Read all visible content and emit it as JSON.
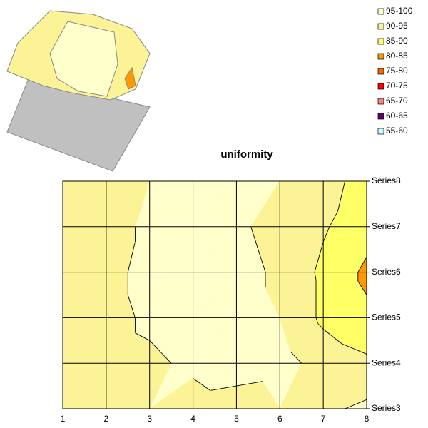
{
  "chart_data": {
    "type": "contour",
    "title": "uniformity",
    "categories": [
      "1",
      "2",
      "3",
      "4",
      "5",
      "6",
      "7",
      "8"
    ],
    "series": [
      {
        "name": "Series3",
        "values": [
          92,
          93,
          95,
          93,
          92,
          95,
          94,
          96
        ]
      },
      {
        "name": "Series4",
        "values": [
          92,
          93,
          94,
          96,
          98,
          97,
          93,
          91
        ]
      },
      {
        "name": "Series5",
        "values": [
          92,
          93,
          96,
          98,
          97,
          95,
          89,
          86
        ]
      },
      {
        "name": "Series6",
        "values": [
          92,
          93,
          97,
          98,
          97,
          94,
          89,
          84
        ]
      },
      {
        "name": "Series7",
        "values": [
          92,
          93,
          96,
          98,
          96,
          93,
          90.5,
          87
        ]
      },
      {
        "name": "Series8",
        "values": [
          92,
          92,
          95,
          98,
          98,
          95,
          91,
          89
        ]
      }
    ],
    "bands": [
      {
        "name": "95-100",
        "color": "#ffffcc"
      },
      {
        "name": "90-95",
        "color": "#fcf296"
      },
      {
        "name": "85-90",
        "color": "#ffff66"
      },
      {
        "name": "80-85",
        "color": "#ff9900"
      },
      {
        "name": "75-80",
        "color": "#ff6600"
      },
      {
        "name": "70-75",
        "color": "#ff0000"
      },
      {
        "name": "65-70",
        "color": "#ff8080"
      },
      {
        "name": "60-65",
        "color": "#660066"
      },
      {
        "name": "55-60",
        "color": "#ccffff"
      }
    ]
  }
}
